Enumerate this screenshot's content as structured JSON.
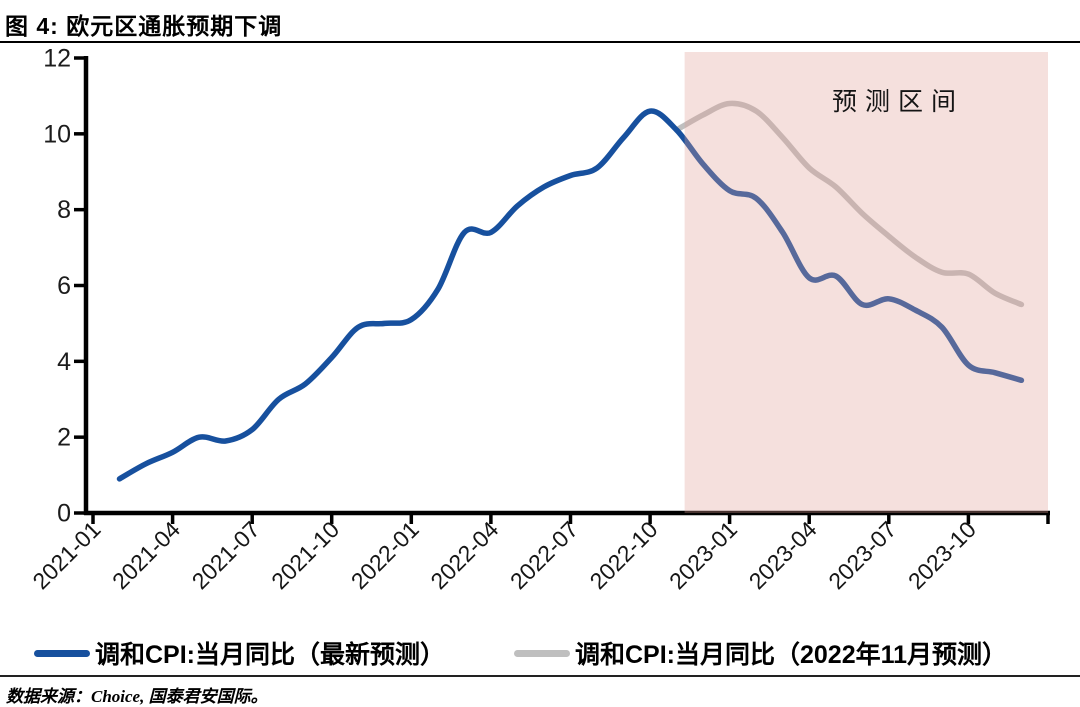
{
  "header": {
    "title": "图 4: 欧元区通胀预期下调"
  },
  "chart_data": {
    "type": "line",
    "title": "图 4: 欧元区通胀预期下调",
    "xlabel": "",
    "ylabel": "",
    "ylim": [
      0,
      12
    ],
    "y_ticks": [
      0,
      2,
      4,
      6,
      8,
      10,
      12
    ],
    "x_tick_labels": [
      "2021-01",
      "2021-04",
      "2021-07",
      "2021-10",
      "2022-01",
      "2022-04",
      "2022-07",
      "2022-10",
      "2023-01",
      "2023-04",
      "2023-07",
      "2023-10"
    ],
    "x_range_months": [
      "2021-01",
      "2024-01"
    ],
    "grid": "off",
    "legend_position": "bottom",
    "axis_color": "#000000",
    "forecast_region": {
      "label": "预测区间",
      "start_month": "2022-11",
      "end_month": "2024-01",
      "fill_hex": "#F5E0DE",
      "overlay_rgba": "rgba(224,158,150,0.32)"
    },
    "series": [
      {
        "name": "调和CPI:当月同比（最新预测）",
        "color": "#17509E",
        "start_month": "2021-02",
        "values": [
          0.9,
          1.3,
          1.6,
          2.0,
          1.9,
          2.2,
          3.0,
          3.4,
          4.1,
          4.9,
          5.0,
          5.1,
          5.9,
          7.4,
          7.4,
          8.1,
          8.6,
          8.9,
          9.1,
          9.9,
          10.6,
          10.1,
          9.2,
          8.5,
          8.3,
          7.4,
          6.2,
          6.25,
          5.5,
          5.65,
          5.35,
          4.9,
          3.9,
          3.7,
          3.5
        ]
      },
      {
        "name": "调和CPI:当月同比（2022年11月预测）",
        "color": "#BFBFBF",
        "start_month": "2022-11",
        "values": [
          10.1,
          10.5,
          10.8,
          10.6,
          9.9,
          9.1,
          8.6,
          7.9,
          7.3,
          6.75,
          6.35,
          6.3,
          5.8,
          5.5
        ]
      }
    ]
  },
  "footer": {
    "source": "数据来源：Choice, 国泰君安国际。"
  }
}
